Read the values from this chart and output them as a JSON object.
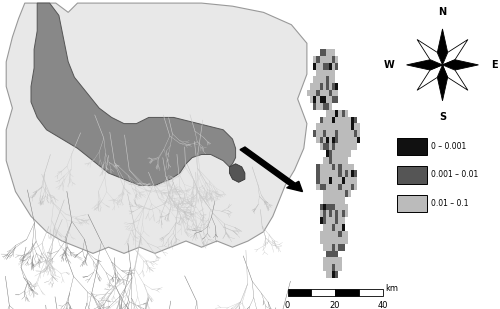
{
  "background_color": "#ffffff",
  "left_panel": {
    "basin_fill": "#aaaaaa",
    "catchment_fill": "#888888",
    "glendower_fill": "#666666",
    "river_line_color": "#cccccc",
    "rill_line_color": "#bbbbbb",
    "outside_line_color": "#888888",
    "border_color": "#333333"
  },
  "right_panel": {
    "legend_labels": [
      "0 – 0.001",
      "0.001 – 0.01",
      "0.01 – 0.1"
    ],
    "legend_colors": [
      "#111111",
      "#555555",
      "#bbbbbb"
    ]
  },
  "compass": {
    "star_colors": [
      "#000000",
      "#ffffff"
    ],
    "label_fontsize": 7
  },
  "scalebar": {
    "ticks": [
      0,
      20,
      40
    ],
    "label": "km",
    "seg_colors": [
      "#000000",
      "#ffffff",
      "#000000",
      "#ffffff"
    ]
  }
}
